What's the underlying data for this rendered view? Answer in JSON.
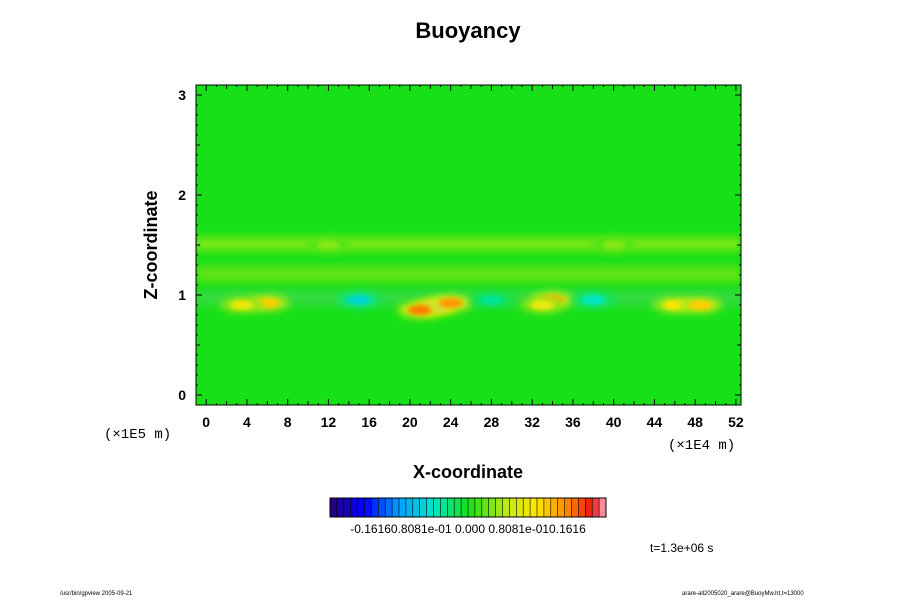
{
  "chart_data": {
    "type": "heatmap",
    "title": "Buoyancy",
    "xlabel": "X-coordinate",
    "ylabel": "Z-coordinate",
    "x_scale_label": "(×1E4 m)",
    "z_scale_label": "(×1E5 m)",
    "xlim": [
      -1,
      52.5
    ],
    "ylim": [
      -0.1,
      3.1
    ],
    "x_ticks": [
      0,
      4,
      8,
      12,
      16,
      20,
      24,
      28,
      32,
      36,
      40,
      44,
      48,
      52
    ],
    "y_ticks": [
      0,
      1,
      2,
      3
    ],
    "value_range": [
      -0.1616,
      0.1616
    ],
    "colorbar_labels": [
      "-0.1616",
      "0.8081e-01",
      "0.000",
      "0.8081e-01",
      "0.1616"
    ],
    "colorbar_label_text": "-0.16160.8081e-01 0.000 0.8081e-010.1616",
    "time_label": "t=1.3e+06 s",
    "background_value": 0.0,
    "features": [
      {
        "x": 22.5,
        "z": 0.88,
        "value": 0.16
      },
      {
        "x": 21.0,
        "z": 0.85,
        "value": 0.12
      },
      {
        "x": 24.0,
        "z": 0.92,
        "value": 0.11
      },
      {
        "x": 6.0,
        "z": 0.92,
        "value": 0.09
      },
      {
        "x": 3.5,
        "z": 0.9,
        "value": 0.07
      },
      {
        "x": 34.0,
        "z": 0.95,
        "value": 0.1
      },
      {
        "x": 33.0,
        "z": 0.9,
        "value": 0.07
      },
      {
        "x": 46.0,
        "z": 0.9,
        "value": 0.08
      },
      {
        "x": 48.5,
        "z": 0.9,
        "value": 0.09
      },
      {
        "x": 15.0,
        "z": 0.95,
        "value": -0.05
      },
      {
        "x": 38.0,
        "z": 0.95,
        "value": -0.04
      },
      {
        "x": 28.0,
        "z": 0.95,
        "value": -0.03
      },
      {
        "x": 12.0,
        "z": 1.5,
        "value": 0.03
      },
      {
        "x": 40.0,
        "z": 1.5,
        "value": 0.03
      }
    ]
  },
  "footer": {
    "left": "/usr/bin/gpview 2005-09-21",
    "right": "arare-all2005020_arare@BuoyMw.ht,t=13000"
  }
}
